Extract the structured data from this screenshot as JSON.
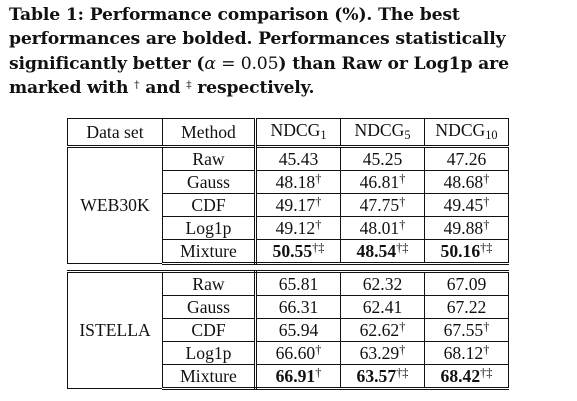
{
  "caption": {
    "label": "Table 1:",
    "part1": " Performance comparison (%). The best performances are bolded. Performances statistically significantly better (",
    "alpha_symbol": "α",
    "alpha_eq": " = 0.05",
    "part2": ") than Raw or Log1p are marked with ",
    "dagger": "†",
    "part3": " and ",
    "ddagger": "‡",
    "part4": " respectively."
  },
  "table": {
    "headers": {
      "dataset": "Data set",
      "method": "Method",
      "ndcg1_base": "NDCG",
      "ndcg1_sub": "1",
      "ndcg5_base": "NDCG",
      "ndcg5_sub": "5",
      "ndcg10_base": "NDCG",
      "ndcg10_sub": "10"
    },
    "groups": [
      {
        "dataset": "WEB30K",
        "rows": [
          {
            "method": "Raw",
            "cells": [
              {
                "v": "45.43",
                "m": ""
              },
              {
                "v": "45.25",
                "m": ""
              },
              {
                "v": "47.26",
                "m": ""
              }
            ]
          },
          {
            "method": "Gauss",
            "cells": [
              {
                "v": "48.18",
                "m": "†"
              },
              {
                "v": "46.81",
                "m": "†"
              },
              {
                "v": "48.68",
                "m": "†"
              }
            ]
          },
          {
            "method": "CDF",
            "cells": [
              {
                "v": "49.17",
                "m": "†"
              },
              {
                "v": "47.75",
                "m": "†"
              },
              {
                "v": "49.45",
                "m": "†"
              }
            ]
          },
          {
            "method": "Log1p",
            "cells": [
              {
                "v": "49.12",
                "m": "†"
              },
              {
                "v": "48.01",
                "m": "†"
              },
              {
                "v": "49.88",
                "m": "†"
              }
            ]
          },
          {
            "method": "Mixture",
            "cells": [
              {
                "v": "50.55",
                "m": "†‡"
              },
              {
                "v": "48.54",
                "m": "†‡"
              },
              {
                "v": "50.16",
                "m": "†‡"
              }
            ]
          }
        ]
      },
      {
        "dataset": "ISTELLA",
        "rows": [
          {
            "method": "Raw",
            "cells": [
              {
                "v": "65.81",
                "m": ""
              },
              {
                "v": "62.32",
                "m": ""
              },
              {
                "v": "67.09",
                "m": ""
              }
            ]
          },
          {
            "method": "Gauss",
            "cells": [
              {
                "v": "66.31",
                "m": ""
              },
              {
                "v": "62.41",
                "m": ""
              },
              {
                "v": "67.22",
                "m": ""
              }
            ]
          },
          {
            "method": "CDF",
            "cells": [
              {
                "v": "65.94",
                "m": ""
              },
              {
                "v": "62.62",
                "m": "†"
              },
              {
                "v": "67.55",
                "m": "†"
              }
            ]
          },
          {
            "method": "Log1p",
            "cells": [
              {
                "v": "66.60",
                "m": "†"
              },
              {
                "v": "63.29",
                "m": "†"
              },
              {
                "v": "68.12",
                "m": "†"
              }
            ]
          },
          {
            "method": "Mixture",
            "cells": [
              {
                "v": "66.91",
                "m": "†"
              },
              {
                "v": "63.57",
                "m": "†‡"
              },
              {
                "v": "68.42",
                "m": "†‡"
              }
            ]
          }
        ]
      }
    ]
  }
}
